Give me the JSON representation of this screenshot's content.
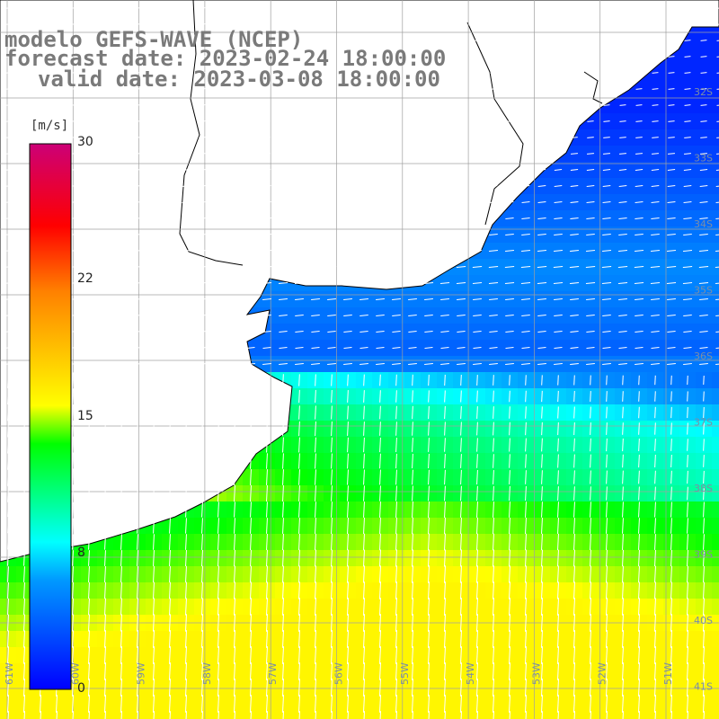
{
  "header": {
    "line1": "modelo GEFS-WAVE (NCEP)",
    "line2": "forecast date: 2023-02-24 18:00:00",
    "line3": "valid date: 2023-03-08 18:00:00"
  },
  "colorbar": {
    "unit": "[m/s]",
    "ticks": [
      "30",
      "22",
      "15",
      "8",
      "0"
    ],
    "tick_values": [
      30,
      22,
      15,
      8,
      0
    ],
    "range": [
      0,
      30
    ],
    "colors": [
      "#0000ff",
      "#0099ff",
      "#00ffff",
      "#00ff00",
      "#ffff00",
      "#ff8000",
      "#ff0000",
      "#cc0077"
    ]
  },
  "map": {
    "lat_labels": [
      "32S",
      "33S",
      "34S",
      "35S",
      "36S",
      "37S",
      "38S",
      "39S",
      "40S",
      "41S"
    ],
    "lon_labels": [
      "61W",
      "60W",
      "59W",
      "58W",
      "57W",
      "56W",
      "55W",
      "54W",
      "53W",
      "52W",
      "51W"
    ],
    "land_color": "#ffffff",
    "grid_color": "#a0a0a0"
  }
}
